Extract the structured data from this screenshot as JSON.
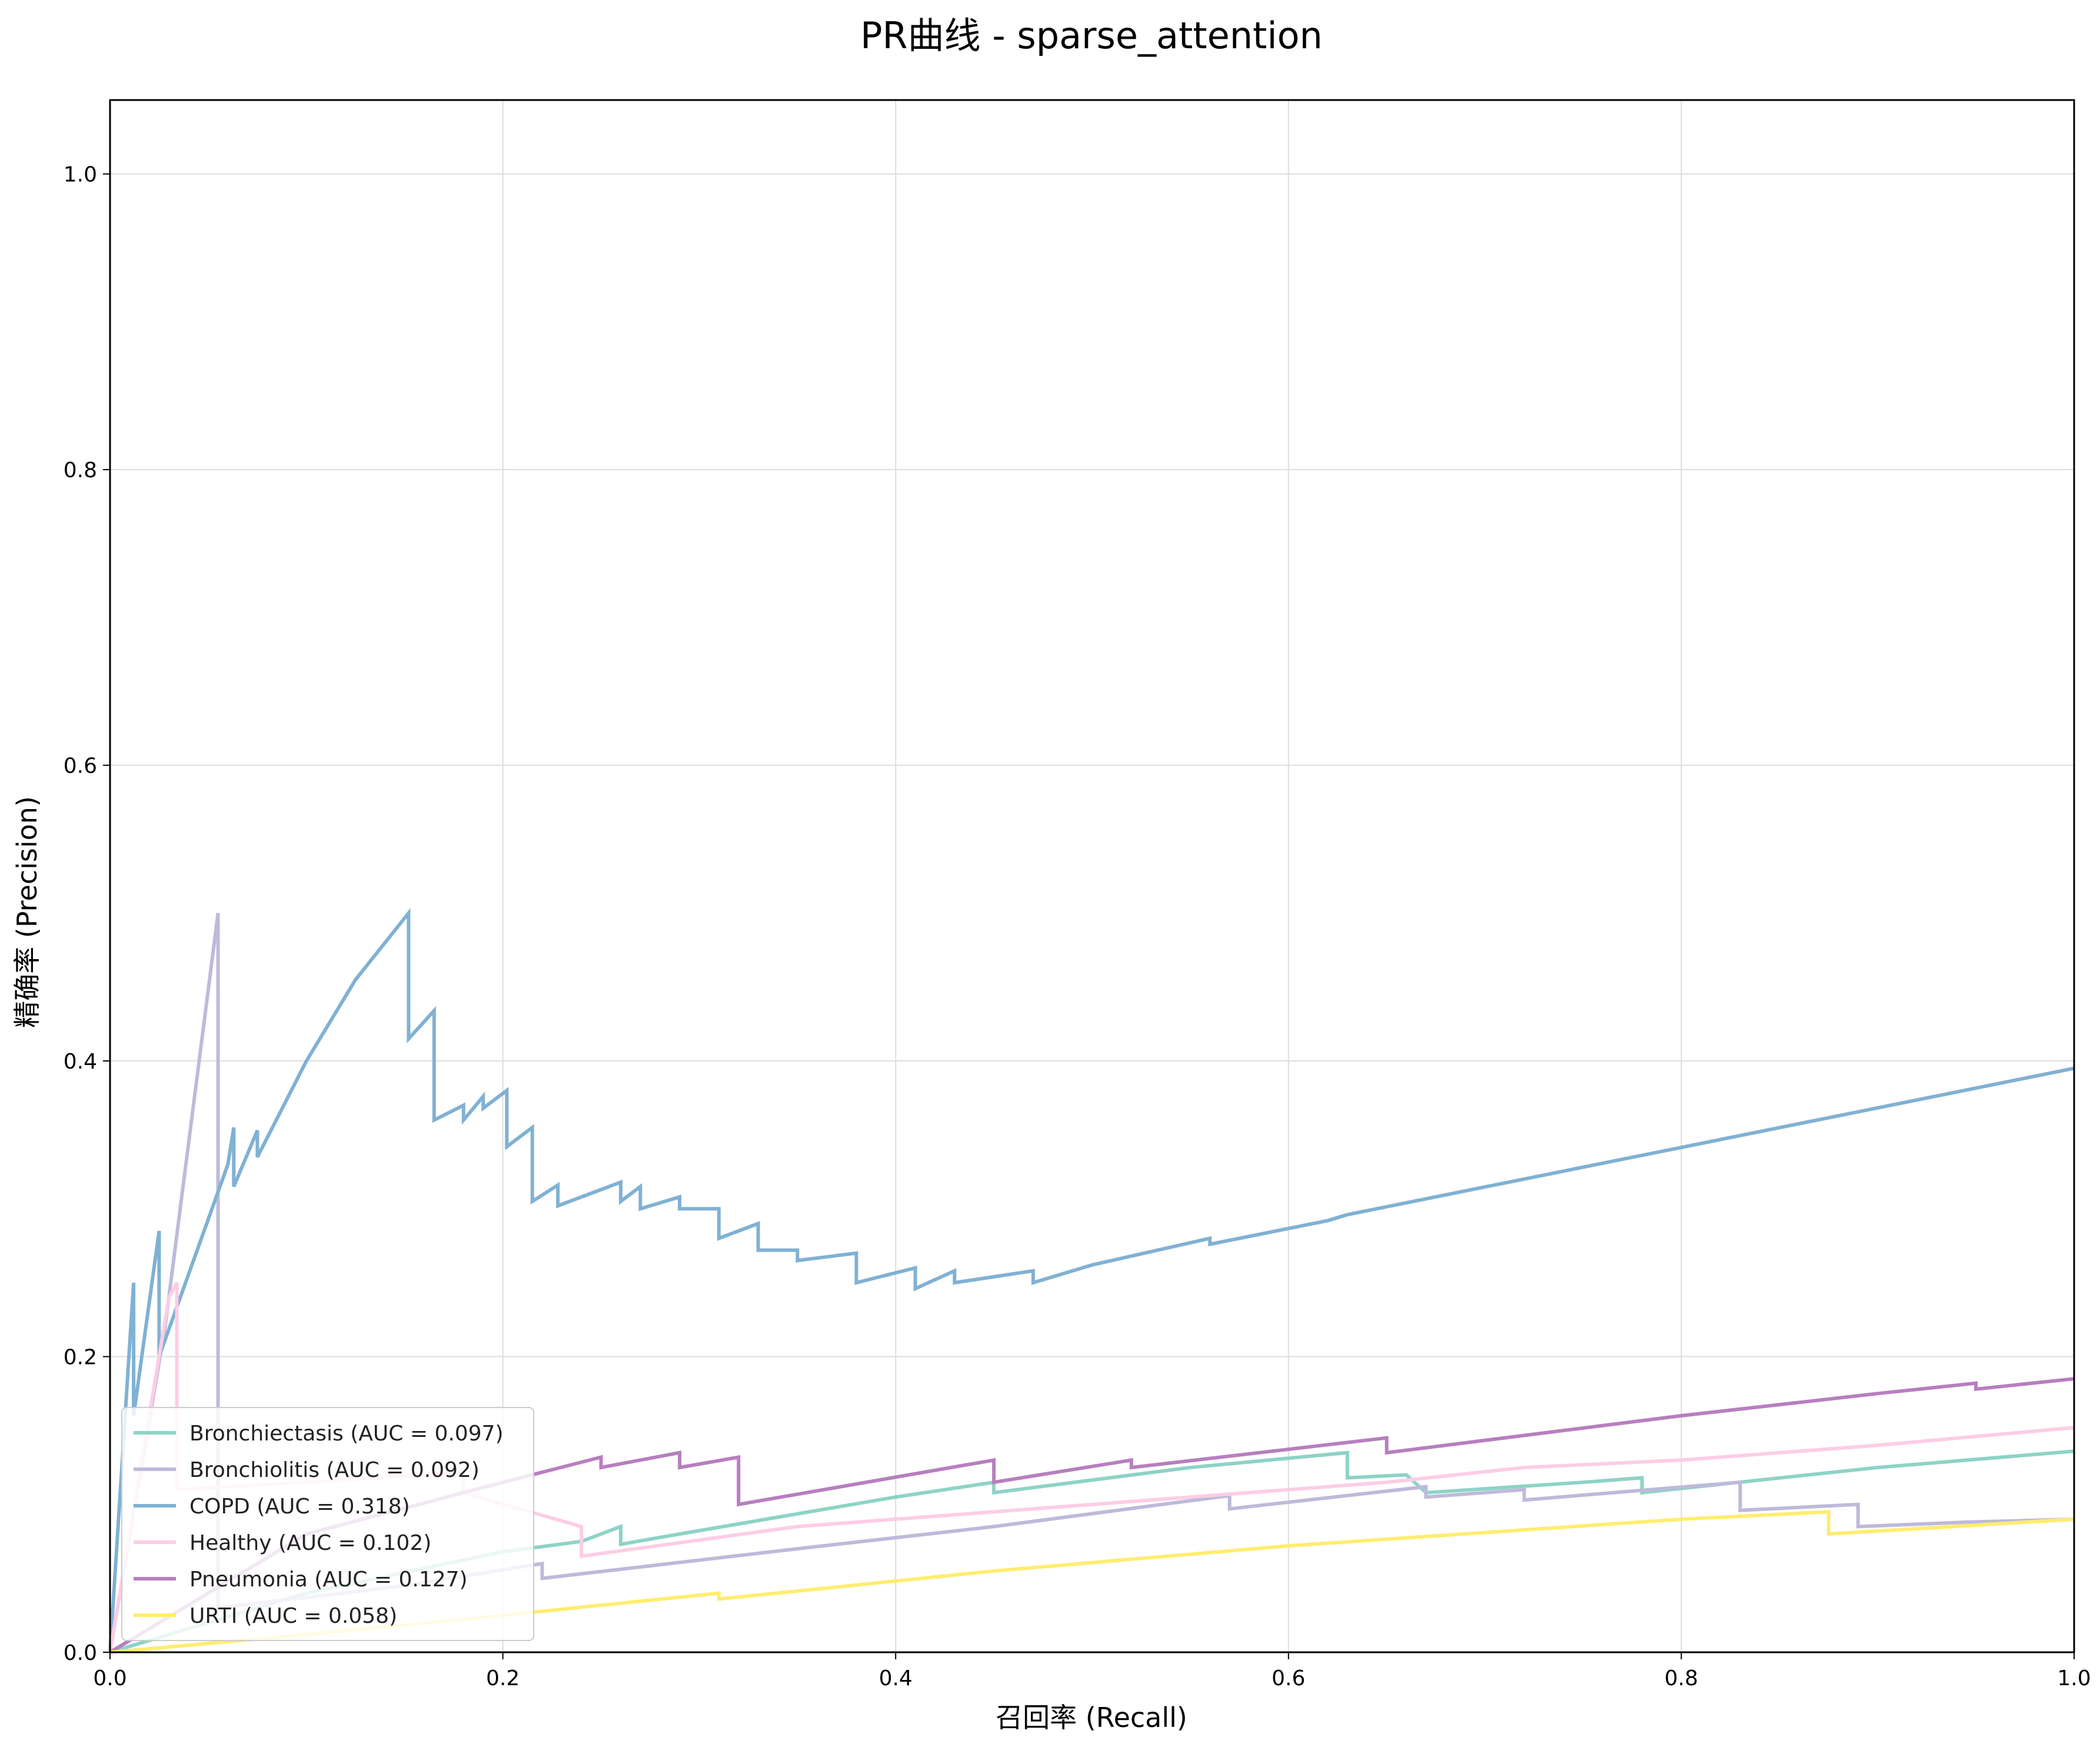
{
  "chart_data": {
    "type": "line",
    "title": "PR曲线 - sparse_attention",
    "xlabel": "召回率 (Recall)",
    "ylabel": "精确率 (Precision)",
    "xlim": [
      0.0,
      1.0
    ],
    "ylim": [
      0.0,
      1.05
    ],
    "xticks": [
      "0.0",
      "0.2",
      "0.4",
      "0.6",
      "0.8",
      "1.0"
    ],
    "yticks": [
      "0.0",
      "0.2",
      "0.4",
      "0.6",
      "0.8",
      "1.0"
    ],
    "grid": true,
    "legend_position": "lower-left",
    "series": [
      {
        "name": "Bronchiectasis (AUC = 0.097)",
        "color": "#8dd3c7",
        "points": [
          [
            0,
            0
          ],
          [
            0.1,
            0.04
          ],
          [
            0.2,
            0.068
          ],
          [
            0.24,
            0.075
          ],
          [
            0.26,
            0.085
          ],
          [
            0.26,
            0.073
          ],
          [
            0.29,
            0.08
          ],
          [
            0.4,
            0.105
          ],
          [
            0.45,
            0.115
          ],
          [
            0.45,
            0.108
          ],
          [
            0.55,
            0.125
          ],
          [
            0.63,
            0.135
          ],
          [
            0.63,
            0.118
          ],
          [
            0.66,
            0.12
          ],
          [
            0.67,
            0.108
          ],
          [
            0.75,
            0.115
          ],
          [
            0.78,
            0.118
          ],
          [
            0.78,
            0.108
          ],
          [
            0.9,
            0.125
          ],
          [
            1.0,
            0.136
          ]
        ]
      },
      {
        "name": "Bronchiolitis (AUC = 0.092)",
        "color": "#bebada",
        "points": [
          [
            0,
            0
          ],
          [
            0.028,
            0.22
          ],
          [
            0.055,
            0.5
          ],
          [
            0.055,
            0.03
          ],
          [
            0.15,
            0.045
          ],
          [
            0.22,
            0.06
          ],
          [
            0.22,
            0.05
          ],
          [
            0.35,
            0.07
          ],
          [
            0.45,
            0.085
          ],
          [
            0.57,
            0.106
          ],
          [
            0.57,
            0.097
          ],
          [
            0.67,
            0.112
          ],
          [
            0.67,
            0.105
          ],
          [
            0.72,
            0.11
          ],
          [
            0.72,
            0.103
          ],
          [
            0.83,
            0.115
          ],
          [
            0.83,
            0.096
          ],
          [
            0.89,
            0.1
          ],
          [
            0.89,
            0.085
          ],
          [
            0.945,
            0.088
          ],
          [
            1.0,
            0.09
          ]
        ]
      },
      {
        "name": "COPD (AUC = 0.318)",
        "color": "#80b1d3",
        "points": [
          [
            0,
            0
          ],
          [
            0.012,
            0.25
          ],
          [
            0.012,
            0.16
          ],
          [
            0.025,
            0.285
          ],
          [
            0.025,
            0.2
          ],
          [
            0.06,
            0.33
          ],
          [
            0.063,
            0.355
          ],
          [
            0.063,
            0.315
          ],
          [
            0.075,
            0.353
          ],
          [
            0.075,
            0.335
          ],
          [
            0.1,
            0.4
          ],
          [
            0.125,
            0.455
          ],
          [
            0.152,
            0.5
          ],
          [
            0.152,
            0.415
          ],
          [
            0.165,
            0.434
          ],
          [
            0.165,
            0.36
          ],
          [
            0.18,
            0.37
          ],
          [
            0.18,
            0.36
          ],
          [
            0.19,
            0.376
          ],
          [
            0.19,
            0.368
          ],
          [
            0.202,
            0.38
          ],
          [
            0.202,
            0.342
          ],
          [
            0.215,
            0.355
          ],
          [
            0.215,
            0.305
          ],
          [
            0.228,
            0.316
          ],
          [
            0.228,
            0.302
          ],
          [
            0.26,
            0.318
          ],
          [
            0.26,
            0.305
          ],
          [
            0.27,
            0.315
          ],
          [
            0.27,
            0.3
          ],
          [
            0.29,
            0.308
          ],
          [
            0.29,
            0.3
          ],
          [
            0.31,
            0.3
          ],
          [
            0.31,
            0.28
          ],
          [
            0.33,
            0.29
          ],
          [
            0.33,
            0.272
          ],
          [
            0.35,
            0.272
          ],
          [
            0.35,
            0.265
          ],
          [
            0.38,
            0.27
          ],
          [
            0.38,
            0.25
          ],
          [
            0.41,
            0.26
          ],
          [
            0.41,
            0.246
          ],
          [
            0.43,
            0.258
          ],
          [
            0.43,
            0.25
          ],
          [
            0.47,
            0.258
          ],
          [
            0.47,
            0.25
          ],
          [
            0.5,
            0.262
          ],
          [
            0.56,
            0.28
          ],
          [
            0.56,
            0.276
          ],
          [
            0.62,
            0.292
          ],
          [
            0.63,
            0.296
          ],
          [
            1.0,
            0.395
          ]
        ]
      },
      {
        "name": "Healthy (AUC = 0.102)",
        "color": "#fccde5",
        "points": [
          [
            0,
            0
          ],
          [
            0.03,
            0.24
          ],
          [
            0.034,
            0.25
          ],
          [
            0.034,
            0.11
          ],
          [
            0.1,
            0.115
          ],
          [
            0.18,
            0.122
          ],
          [
            0.18,
            0.108
          ],
          [
            0.24,
            0.085
          ],
          [
            0.24,
            0.065
          ],
          [
            0.35,
            0.085
          ],
          [
            0.45,
            0.095
          ],
          [
            0.55,
            0.105
          ],
          [
            0.65,
            0.115
          ],
          [
            0.72,
            0.125
          ],
          [
            0.8,
            0.13
          ],
          [
            0.9,
            0.14
          ],
          [
            1.0,
            0.152
          ]
        ]
      },
      {
        "name": "Pneumonia (AUC = 0.127)",
        "color": "#b77fbf",
        "points": [
          [
            0,
            0
          ],
          [
            0.1,
            0.08
          ],
          [
            0.2,
            0.115
          ],
          [
            0.25,
            0.132
          ],
          [
            0.25,
            0.125
          ],
          [
            0.29,
            0.135
          ],
          [
            0.29,
            0.125
          ],
          [
            0.32,
            0.132
          ],
          [
            0.32,
            0.1
          ],
          [
            0.45,
            0.13
          ],
          [
            0.45,
            0.115
          ],
          [
            0.52,
            0.13
          ],
          [
            0.52,
            0.125
          ],
          [
            0.65,
            0.145
          ],
          [
            0.65,
            0.135
          ],
          [
            0.8,
            0.16
          ],
          [
            0.9,
            0.175
          ],
          [
            0.95,
            0.182
          ],
          [
            0.95,
            0.178
          ],
          [
            1.0,
            0.185
          ]
        ]
      },
      {
        "name": "URTI (AUC = 0.058)",
        "color": "#ffed6f",
        "points": [
          [
            0,
            0
          ],
          [
            0.1,
            0.012
          ],
          [
            0.2,
            0.025
          ],
          [
            0.31,
            0.04
          ],
          [
            0.31,
            0.036
          ],
          [
            0.45,
            0.055
          ],
          [
            0.6,
            0.072
          ],
          [
            0.8,
            0.09
          ],
          [
            0.875,
            0.095
          ],
          [
            0.875,
            0.08
          ],
          [
            1.0,
            0.09
          ]
        ]
      }
    ]
  }
}
